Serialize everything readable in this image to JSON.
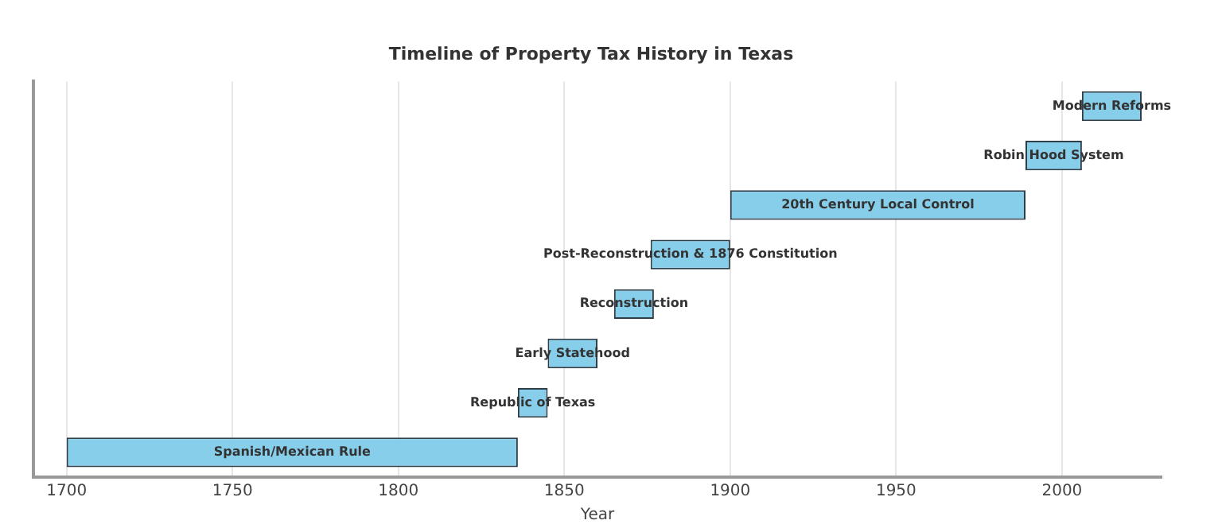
{
  "chart_data": {
    "type": "bar",
    "orientation": "horizontal",
    "title": "Timeline of Property Tax History in Texas",
    "xlabel": "Year",
    "categories": [
      "Modern Reforms",
      "Robin Hood System",
      "20th Century Local Control",
      "Post-Reconstruction & 1876 Constitution",
      "Reconstruction",
      "Early Statehood",
      "Republic of Texas",
      "Spanish/Mexican Rule"
    ],
    "base": [
      2006,
      1989,
      1900,
      1876,
      1865,
      1845,
      1836,
      1700
    ],
    "values": [
      18,
      17,
      89,
      24,
      12,
      15,
      9,
      136
    ],
    "color": "#87ceeb",
    "xlim": [
      1690,
      2030
    ],
    "xticks": [
      1700,
      1750,
      1800,
      1850,
      1900,
      1950,
      2000
    ],
    "grid": "x",
    "legend": false
  }
}
